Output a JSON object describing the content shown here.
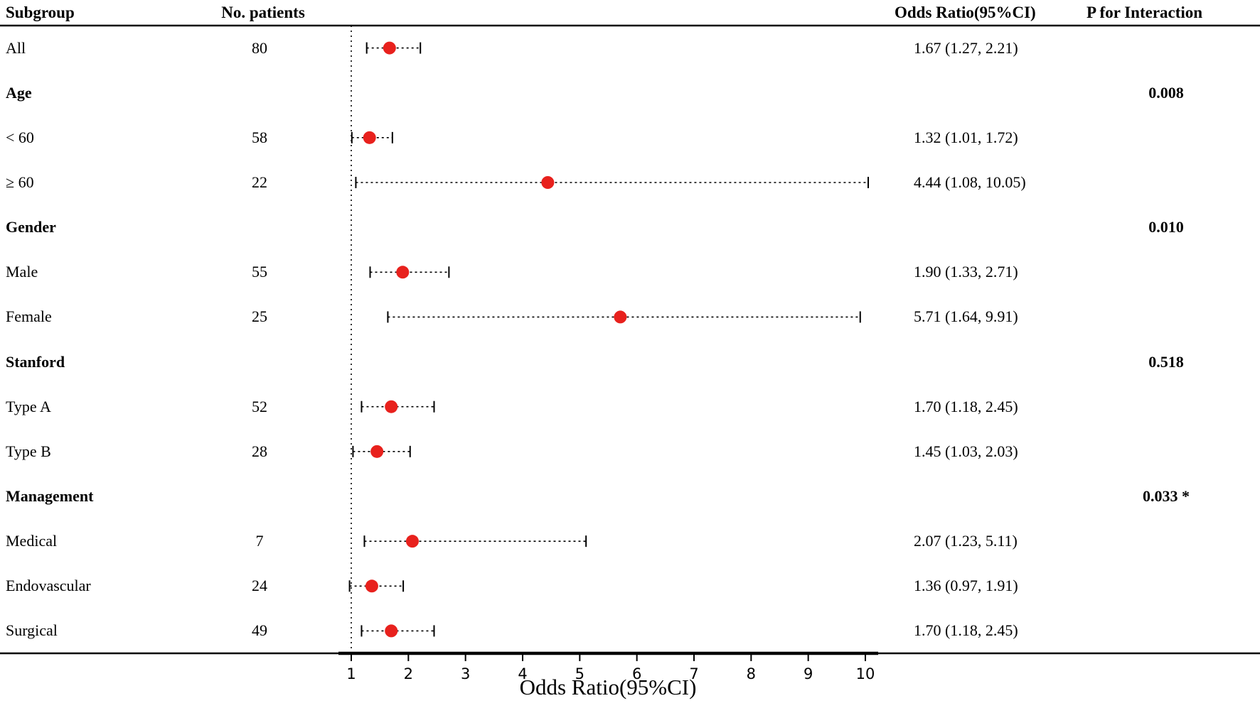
{
  "header": {
    "subgroup": "Subgroup",
    "patients": "No. patients",
    "or_ci": "Odds Ratio(95%CI)",
    "p_interaction": "P for Interaction"
  },
  "colors": {
    "point": "#e8211d",
    "line": "#000000",
    "background": "#ffffff"
  },
  "axis": {
    "ticks": [
      1,
      2,
      3,
      4,
      5,
      6,
      7,
      8,
      9,
      10
    ],
    "min": 1,
    "max": 10,
    "reference_line": 1
  },
  "chart_data": {
    "type": "forest",
    "title": "",
    "xlabel": "Odds Ratio(95%CI)",
    "xlim": [
      1,
      10
    ],
    "ref_line": 1,
    "grid": false,
    "rows": [
      {
        "label": "All",
        "bold": false,
        "patients": "80",
        "or": 1.67,
        "lo": 1.27,
        "hi": 2.21,
        "or_text": "1.67 (1.27, 2.21)",
        "p": ""
      },
      {
        "label": "Age",
        "bold": true,
        "patients": "",
        "or": null,
        "lo": null,
        "hi": null,
        "or_text": "",
        "p": "0.008"
      },
      {
        "label": "< 60",
        "bold": false,
        "patients": "58",
        "or": 1.32,
        "lo": 1.01,
        "hi": 1.72,
        "or_text": "1.32 (1.01, 1.72)",
        "p": ""
      },
      {
        "label": "≥ 60",
        "bold": false,
        "patients": "22",
        "or": 4.44,
        "lo": 1.08,
        "hi": 10.05,
        "or_text": "4.44 (1.08, 10.05)",
        "p": ""
      },
      {
        "label": "Gender",
        "bold": true,
        "patients": "",
        "or": null,
        "lo": null,
        "hi": null,
        "or_text": "",
        "p": "0.010"
      },
      {
        "label": "Male",
        "bold": false,
        "patients": "55",
        "or": 1.9,
        "lo": 1.33,
        "hi": 2.71,
        "or_text": "1.90 (1.33, 2.71)",
        "p": ""
      },
      {
        "label": "Female",
        "bold": false,
        "patients": "25",
        "or": 5.71,
        "lo": 1.64,
        "hi": 9.91,
        "or_text": "5.71 (1.64, 9.91)",
        "p": ""
      },
      {
        "label": "Stanford",
        "bold": true,
        "patients": "",
        "or": null,
        "lo": null,
        "hi": null,
        "or_text": "",
        "p": "0.518"
      },
      {
        "label": "Type A",
        "bold": false,
        "patients": "52",
        "or": 1.7,
        "lo": 1.18,
        "hi": 2.45,
        "or_text": "1.70 (1.18, 2.45)",
        "p": ""
      },
      {
        "label": "Type B",
        "bold": false,
        "patients": "28",
        "or": 1.45,
        "lo": 1.03,
        "hi": 2.03,
        "or_text": "1.45 (1.03, 2.03)",
        "p": ""
      },
      {
        "label": "Management",
        "bold": true,
        "patients": "",
        "or": null,
        "lo": null,
        "hi": null,
        "or_text": "",
        "p": "0.033 *"
      },
      {
        "label": "Medical",
        "bold": false,
        "patients": "7",
        "or": 2.07,
        "lo": 1.23,
        "hi": 5.11,
        "or_text": "2.07 (1.23, 5.11)",
        "p": ""
      },
      {
        "label": "Endovascular",
        "bold": false,
        "patients": "24",
        "or": 1.36,
        "lo": 0.97,
        "hi": 1.91,
        "or_text": "1.36 (0.97, 1.91)",
        "p": ""
      },
      {
        "label": "Surgical",
        "bold": false,
        "patients": "49",
        "or": 1.7,
        "lo": 1.18,
        "hi": 2.45,
        "or_text": "1.70 (1.18, 2.45)",
        "p": ""
      }
    ]
  }
}
